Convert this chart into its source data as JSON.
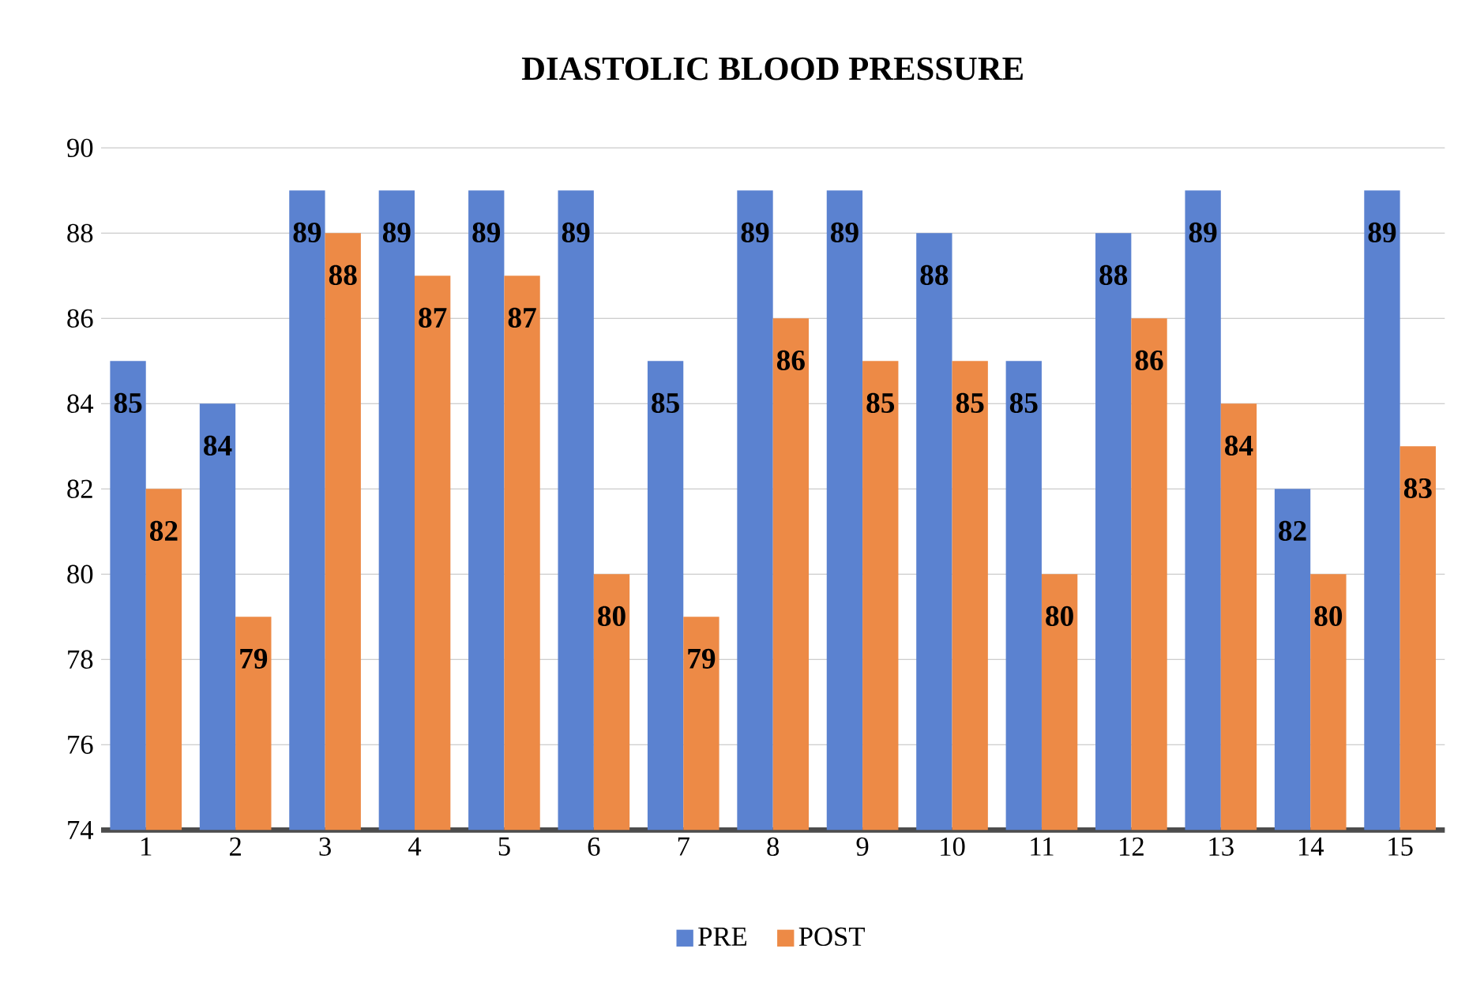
{
  "chart_data": {
    "type": "bar",
    "title": "DIASTOLIC   BLOOD PRESSURE",
    "categories": [
      "1",
      "2",
      "3",
      "4",
      "5",
      "6",
      "7",
      "8",
      "9",
      "10",
      "11",
      "12",
      "13",
      "14",
      "15"
    ],
    "series": [
      {
        "name": "PRE",
        "color": "#5b82d0",
        "values": [
          85,
          84,
          89,
          89,
          89,
          89,
          85,
          89,
          89,
          88,
          85,
          88,
          89,
          82,
          89
        ]
      },
      {
        "name": "POST",
        "color": "#ed8a46",
        "values": [
          82,
          79,
          88,
          87,
          87,
          80,
          79,
          86,
          85,
          85,
          80,
          86,
          84,
          80,
          83
        ]
      }
    ],
    "ylim": [
      74,
      90
    ],
    "yticks": [
      74,
      76,
      78,
      80,
      82,
      84,
      86,
      88,
      90
    ],
    "grid": "y",
    "legend": "bottom",
    "data_labels": true
  }
}
